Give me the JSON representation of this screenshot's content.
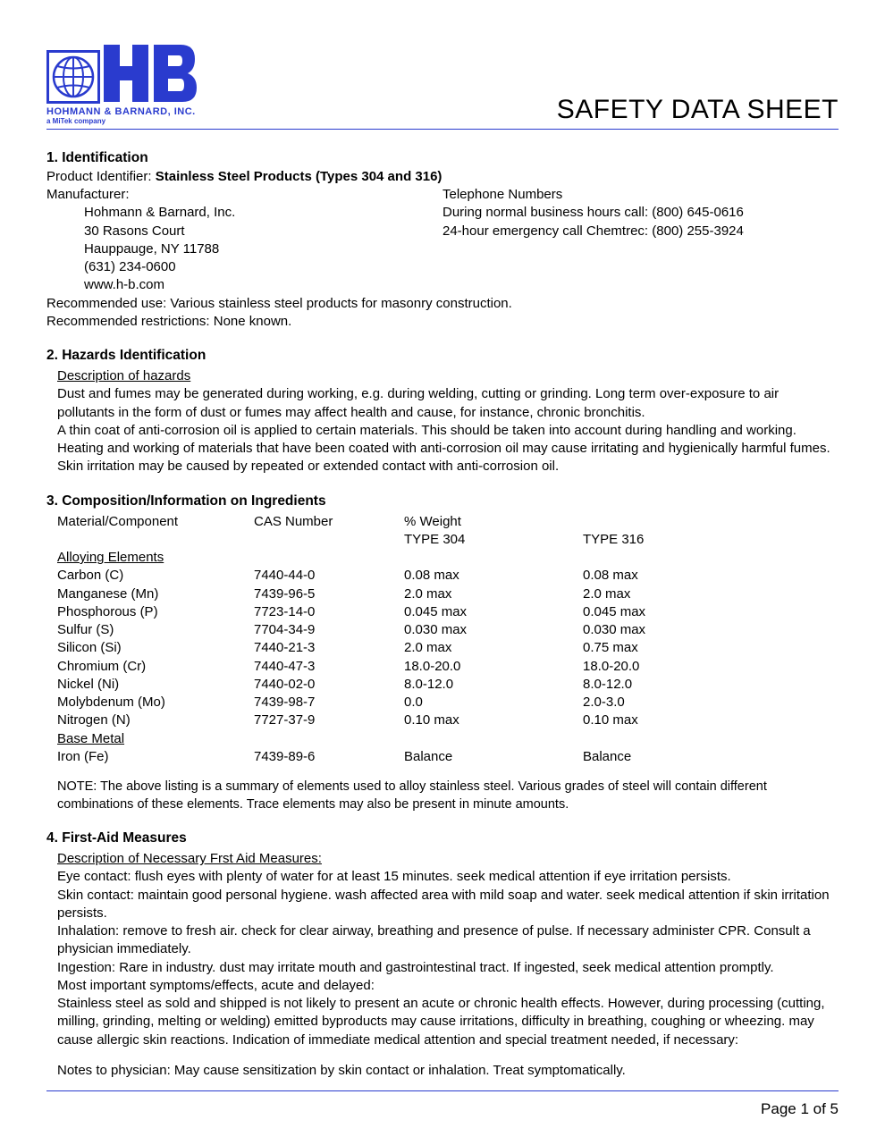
{
  "header": {
    "company_name": "HOHMANN & BARNARD, INC.",
    "company_sub": "a MiTek company",
    "doc_title": "SAFETY DATA SHEET",
    "logo_color": "#2a3bce"
  },
  "section1": {
    "title": "1. Identification",
    "product_label": "Product Identifier: ",
    "product_value": "Stainless Steel Products (Types 304 and 316)",
    "manufacturer_label": "Manufacturer:",
    "manufacturer_lines": {
      "l1": "Hohmann & Barnard, Inc.",
      "l2": "30 Rasons Court",
      "l3": "Hauppauge, NY 11788",
      "l4": "(631) 234-0600",
      "l5": "www.h-b.com"
    },
    "telephone_label": "Telephone Numbers",
    "telephone_lines": {
      "l1": "During normal business hours call: (800) 645-0616",
      "l2": "24-hour emergency call Chemtrec: (800) 255-3924"
    },
    "rec_use": "Recommended use: Various stainless steel products for masonry construction.",
    "rec_restrict": "Recommended restrictions: None known."
  },
  "section2": {
    "title": "2. Hazards Identification",
    "sub": "Description of hazards",
    "p1": "Dust and fumes may be generated during working, e.g. during welding, cutting or grinding. Long term over-exposure to air pollutants in the form of dust or fumes may affect health and cause, for instance, chronic bronchitis.",
    "p2": "A thin coat of anti-corrosion oil is applied to certain materials. This should be taken into account during handling and working. Heating and working of materials that have been coated with anti-corrosion oil may cause irritating and hygienically harmful fumes. Skin irritation may be caused by repeated or extended contact with anti-corrosion oil."
  },
  "section3": {
    "title": "3. Composition/Information on Ingredients",
    "h_material": "Material/Component",
    "h_cas": "CAS Number",
    "h_weight": "% Weight",
    "h_t304": "TYPE 304",
    "h_t316": "TYPE 316",
    "alloying_label": "Alloying Elements",
    "rows": [
      {
        "mat": "Carbon (C)",
        "cas": "7440-44-0",
        "t304": "0.08 max",
        "t316": "0.08 max"
      },
      {
        "mat": "Manganese (Mn)",
        "cas": "7439-96-5",
        "t304": "2.0 max",
        "t316": "2.0 max"
      },
      {
        "mat": "Phosphorous (P)",
        "cas": "7723-14-0",
        "t304": "0.045 max",
        "t316": "0.045 max"
      },
      {
        "mat": "Sulfur (S)",
        "cas": "7704-34-9",
        "t304": "0.030 max",
        "t316": "0.030 max"
      },
      {
        "mat": "Silicon (Si)",
        "cas": "7440-21-3",
        "t304": "2.0 max",
        "t316": "0.75 max"
      },
      {
        "mat": "Chromium (Cr)",
        "cas": "7440-47-3",
        "t304": "18.0-20.0",
        "t316": "18.0-20.0"
      },
      {
        "mat": "Nickel (Ni)",
        "cas": "7440-02-0",
        "t304": "8.0-12.0",
        "t316": "8.0-12.0"
      },
      {
        "mat": "Molybdenum (Mo)",
        "cas": "7439-98-7",
        "t304": "0.0",
        "t316": "2.0-3.0"
      },
      {
        "mat": "Nitrogen (N)",
        "cas": "7727-37-9",
        "t304": "0.10 max",
        "t316": "0.10 max"
      }
    ],
    "base_label": "Base Metal",
    "base_row": {
      "mat": "Iron (Fe)",
      "cas": "7439-89-6",
      "t304": "Balance",
      "t316": "Balance"
    },
    "note": "NOTE: The above listing is a summary of elements used to alloy stainless steel. Various grades of steel will contain different combinations of these elements. Trace elements may also be present in minute amounts."
  },
  "section4": {
    "title": "4. First-Aid Measures",
    "sub": "Description of Necessary Frst Aid Measures:",
    "eye": "Eye contact: flush eyes with plenty of water for at least 15 minutes. seek medical attention if eye irritation persists.",
    "skin": "Skin contact: maintain good personal hygiene. wash affected area with mild soap and water. seek medical attention if skin irritation persists.",
    "inhalation": "Inhalation: remove to fresh air. check for clear airway, breathing and presence of pulse. If necessary administer CPR. Consult a physician immediately.",
    "ingestion": "Ingestion: Rare in industry. dust may irritate mouth and gastrointestinal tract. If ingested, seek medical attention promptly.",
    "symptoms_label": "Most important symptoms/effects, acute and delayed:",
    "symptoms": "Stainless steel as sold and shipped is not likely to present an acute or chronic health effects. However, during processing (cutting, milling, grinding, melting or welding) emitted byproducts may cause irritations, difficulty in breathing, coughing or wheezing. may cause allergic skin reactions. Indication of immediate medical attention and special treatment needed, if necessary:",
    "notes": "Notes to physician: May cause sensitization by skin contact or inhalation. Treat symptomatically."
  },
  "footer": {
    "page": "Page 1 of 5"
  }
}
